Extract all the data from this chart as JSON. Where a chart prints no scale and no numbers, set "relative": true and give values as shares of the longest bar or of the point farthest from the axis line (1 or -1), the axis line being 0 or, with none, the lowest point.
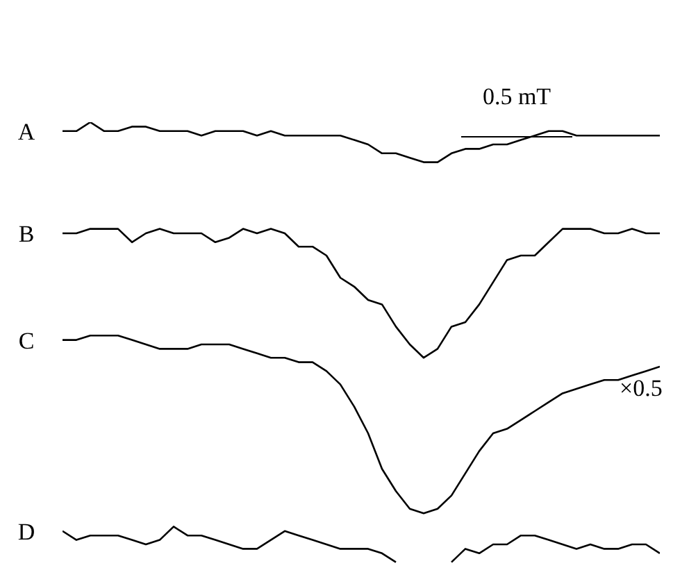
{
  "chart_data": {
    "type": "line",
    "relative": true,
    "legend": false,
    "marker": "none",
    "line_style": "solid",
    "categories": [
      null,
      null,
      null,
      null,
      null,
      null,
      null,
      null,
      null,
      null,
      null,
      null,
      null,
      null,
      null,
      null,
      null,
      null,
      null,
      null,
      null,
      null,
      null,
      null,
      null,
      null,
      null,
      null,
      null,
      null,
      null,
      null,
      null,
      null,
      null,
      null,
      null,
      null,
      null,
      null,
      null,
      null,
      null,
      null
    ],
    "annotations": [
      "0.5 mT",
      "×0.5"
    ],
    "series": [
      {
        "name": "A",
        "color": "#000000",
        "values": [
          0.98,
          0.98,
          1.0,
          0.98,
          0.98,
          0.99,
          0.99,
          0.98,
          0.98,
          0.98,
          0.97,
          0.98,
          0.98,
          0.98,
          0.97,
          0.98,
          0.97,
          0.97,
          0.97,
          0.97,
          0.97,
          0.96,
          0.95,
          0.93,
          0.93,
          0.92,
          0.91,
          0.91,
          0.93,
          0.94,
          0.94,
          0.95,
          0.95,
          0.96,
          0.97,
          0.98,
          0.98,
          0.97,
          0.97,
          0.97,
          0.97,
          0.97,
          0.97,
          0.97
        ]
      },
      {
        "name": "B",
        "color": "#000000",
        "values": [
          0.75,
          0.75,
          0.76,
          0.76,
          0.76,
          0.73,
          0.75,
          0.76,
          0.75,
          0.75,
          0.75,
          0.73,
          0.74,
          0.76,
          0.75,
          0.76,
          0.75,
          0.72,
          0.72,
          0.7,
          0.65,
          0.63,
          0.6,
          0.59,
          0.54,
          0.5,
          0.47,
          0.49,
          0.54,
          0.55,
          0.59,
          0.64,
          0.69,
          0.7,
          0.7,
          0.73,
          0.76,
          0.76,
          0.76,
          0.75,
          0.75,
          0.76,
          0.75,
          0.75
        ]
      },
      {
        "name": "C",
        "color": "#000000",
        "values": [
          0.51,
          0.51,
          0.52,
          0.52,
          0.52,
          0.51,
          0.5,
          0.49,
          0.49,
          0.49,
          0.5,
          0.5,
          0.5,
          0.49,
          0.48,
          0.47,
          0.47,
          0.46,
          0.46,
          0.44,
          0.41,
          0.36,
          0.3,
          0.22,
          0.17,
          0.13,
          0.12,
          0.13,
          0.16,
          0.21,
          0.26,
          0.3,
          0.31,
          0.33,
          0.35,
          0.37,
          0.39,
          0.4,
          0.41,
          0.42,
          0.42,
          0.43,
          0.44,
          0.45
        ]
      },
      {
        "name": "D",
        "color": "#000000",
        "values": [
          0.08,
          0.06,
          0.07,
          0.07,
          0.07,
          0.06,
          0.05,
          0.06,
          0.09,
          0.07,
          0.07,
          0.06,
          0.05,
          0.04,
          0.04,
          0.06,
          0.08,
          0.07,
          0.06,
          0.05,
          0.04,
          0.04,
          0.04,
          0.03,
          0.01,
          null,
          null,
          null,
          0.01,
          0.04,
          0.03,
          0.05,
          0.05,
          0.07,
          0.07,
          0.06,
          0.05,
          0.04,
          0.05,
          0.04,
          0.04,
          0.05,
          0.05,
          0.03
        ]
      }
    ]
  }
}
